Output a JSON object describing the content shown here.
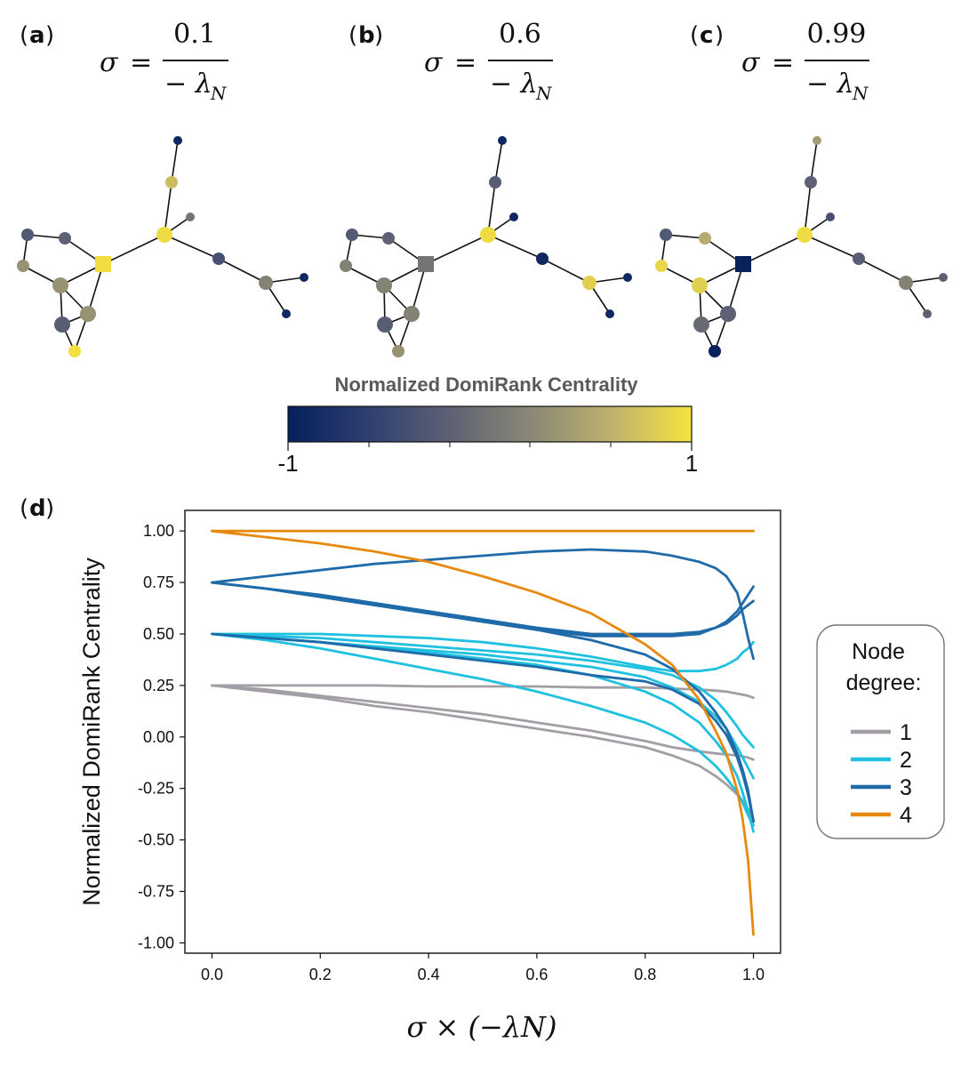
{
  "panels": [
    {
      "letter": "a",
      "sigma_symbol": "σ",
      "equals": "=",
      "numerator": "0.1",
      "denominator": "− λ",
      "subscript": "N"
    },
    {
      "letter": "b",
      "sigma_symbol": "σ",
      "equals": "=",
      "numerator": "0.6",
      "denominator": "− λ",
      "subscript": "N"
    },
    {
      "letter": "c",
      "sigma_symbol": "σ",
      "equals": "=",
      "numerator": "0.99",
      "denominator": "− λ",
      "subscript": "N"
    },
    {
      "letter": "d"
    }
  ],
  "colorbar": {
    "title": "Normalized DomiRank Centrality",
    "min_label": "-1",
    "max_label": "1",
    "colors": [
      "#06205c",
      "#2f3f70",
      "#5d6173",
      "#8a8775",
      "#bdb16e",
      "#f6e23e"
    ]
  },
  "networks": {
    "node_color_values": {
      "a": [
        -0.9,
        0.7,
        0.95,
        0.0,
        -0.4,
        0.15,
        -0.9,
        -0.9,
        -0.3,
        -0.2,
        0.3,
        0.3,
        0.3,
        -0.25,
        0.98
      ],
      "b": [
        -0.9,
        -0.25,
        0.95,
        -0.9,
        -0.9,
        0.85,
        -0.9,
        -0.9,
        -0.3,
        -0.2,
        0.15,
        0.15,
        0.15,
        -0.25,
        0.3
      ],
      "c": [
        0.4,
        -0.2,
        0.95,
        -0.4,
        -0.25,
        0.15,
        -0.2,
        -0.2,
        -0.3,
        0.55,
        0.9,
        0.85,
        -0.2,
        -0.1,
        -0.99
      ]
    }
  },
  "chart_data": {
    "type": "line",
    "title": "",
    "xlabel": "σ × (−λN)",
    "ylabel": "Normalized DomiRank Centrality",
    "xlim": [
      -0.05,
      1.05
    ],
    "ylim": [
      -1.05,
      1.1
    ],
    "xticks": [
      "0.0",
      "0.2",
      "0.4",
      "0.6",
      "0.8",
      "1.0"
    ],
    "yticks": [
      "1.00",
      "0.75",
      "0.50",
      "0.25",
      "0.00",
      "-0.25",
      "-0.50",
      "-0.75",
      "-1.00"
    ],
    "ytick_values": [
      1.0,
      0.75,
      0.5,
      0.25,
      0.0,
      -0.25,
      -0.5,
      -0.75,
      -1.0
    ],
    "xtick_values": [
      0.0,
      0.2,
      0.4,
      0.6,
      0.8,
      1.0
    ],
    "grid": false,
    "legend": {
      "title_line1": "Node",
      "title_line2": "degree:",
      "placement": "right"
    },
    "x": [
      0,
      0.1,
      0.2,
      0.3,
      0.4,
      0.5,
      0.6,
      0.7,
      0.8,
      0.85,
      0.9,
      0.93,
      0.95,
      0.97,
      0.98,
      0.99,
      1.0
    ],
    "series": [
      {
        "name": "1",
        "color": "#a39ea6",
        "values": [
          0.25,
          0.25,
          0.25,
          0.25,
          0.245,
          0.245,
          0.245,
          0.24,
          0.24,
          0.235,
          0.23,
          0.225,
          0.22,
          0.21,
          0.205,
          0.2,
          0.19
        ]
      },
      {
        "name": "1",
        "color": "#a39ea6",
        "values": [
          0.25,
          0.23,
          0.2,
          0.17,
          0.14,
          0.11,
          0.07,
          0.03,
          -0.02,
          -0.05,
          -0.07,
          -0.08,
          -0.085,
          -0.09,
          -0.095,
          -0.1,
          -0.11
        ]
      },
      {
        "name": "1",
        "color": "#a39ea6",
        "values": [
          0.25,
          0.22,
          0.19,
          0.15,
          0.12,
          0.08,
          0.04,
          0.0,
          -0.05,
          -0.09,
          -0.14,
          -0.19,
          -0.23,
          -0.28,
          -0.31,
          -0.35,
          -0.4
        ]
      },
      {
        "name": "2",
        "color": "#20c0e0",
        "values": [
          0.5,
          0.5,
          0.5,
          0.49,
          0.48,
          0.46,
          0.43,
          0.39,
          0.34,
          0.32,
          0.32,
          0.33,
          0.35,
          0.38,
          0.41,
          0.43,
          0.46
        ]
      },
      {
        "name": "2",
        "color": "#20c0e0",
        "values": [
          0.5,
          0.49,
          0.48,
          0.46,
          0.44,
          0.42,
          0.4,
          0.37,
          0.33,
          0.3,
          0.24,
          0.18,
          0.12,
          0.05,
          0.01,
          -0.02,
          -0.05
        ]
      },
      {
        "name": "2",
        "color": "#20c0e0",
        "values": [
          0.5,
          0.48,
          0.46,
          0.44,
          0.42,
          0.4,
          0.37,
          0.34,
          0.29,
          0.24,
          0.17,
          0.1,
          0.04,
          -0.05,
          -0.1,
          -0.15,
          -0.2
        ]
      },
      {
        "name": "2",
        "color": "#20c0e0",
        "values": [
          0.5,
          0.47,
          0.43,
          0.38,
          0.33,
          0.28,
          0.22,
          0.15,
          0.07,
          0.01,
          -0.07,
          -0.14,
          -0.2,
          -0.27,
          -0.32,
          -0.38,
          -0.43
        ]
      },
      {
        "name": "2",
        "color": "#20c0e0",
        "values": [
          0.5,
          0.48,
          0.46,
          0.43,
          0.41,
          0.38,
          0.35,
          0.3,
          0.22,
          0.16,
          0.07,
          -0.02,
          -0.09,
          -0.19,
          -0.27,
          -0.36,
          -0.46
        ]
      },
      {
        "name": "3",
        "color": "#1f6ba9",
        "values": [
          0.75,
          0.78,
          0.81,
          0.84,
          0.86,
          0.88,
          0.9,
          0.91,
          0.9,
          0.88,
          0.85,
          0.82,
          0.78,
          0.7,
          0.6,
          0.48,
          0.38
        ]
      },
      {
        "name": "3",
        "color": "#1f6ba9",
        "values": [
          0.75,
          0.72,
          0.68,
          0.64,
          0.6,
          0.56,
          0.52,
          0.49,
          0.49,
          0.49,
          0.5,
          0.53,
          0.56,
          0.61,
          0.65,
          0.69,
          0.73
        ]
      },
      {
        "name": "3",
        "color": "#1f6ba9",
        "values": [
          0.75,
          0.72,
          0.69,
          0.65,
          0.61,
          0.57,
          0.53,
          0.5,
          0.5,
          0.5,
          0.51,
          0.53,
          0.55,
          0.59,
          0.62,
          0.64,
          0.66
        ]
      },
      {
        "name": "3",
        "color": "#1f6ba9",
        "values": [
          0.75,
          0.72,
          0.68,
          0.64,
          0.6,
          0.56,
          0.52,
          0.47,
          0.4,
          0.33,
          0.22,
          0.12,
          0.04,
          -0.08,
          -0.16,
          -0.26,
          -0.41
        ]
      },
      {
        "name": "3",
        "color": "#1f6ba9",
        "values": [
          0.5,
          0.48,
          0.46,
          0.43,
          0.4,
          0.37,
          0.34,
          0.3,
          0.27,
          0.23,
          0.16,
          0.08,
          0.01,
          -0.1,
          -0.18,
          -0.28,
          -0.41
        ]
      },
      {
        "name": "4",
        "color": "#e8890f",
        "values": [
          1.0,
          1.0,
          1.0,
          1.0,
          1.0,
          1.0,
          1.0,
          1.0,
          1.0,
          1.0,
          1.0,
          1.0,
          1.0,
          1.0,
          1.0,
          1.0,
          1.0
        ]
      },
      {
        "name": "4",
        "color": "#e8890f",
        "values": [
          1.0,
          0.97,
          0.94,
          0.9,
          0.85,
          0.78,
          0.7,
          0.6,
          0.45,
          0.35,
          0.18,
          0.03,
          -0.08,
          -0.26,
          -0.4,
          -0.6,
          -0.96
        ]
      }
    ],
    "legend_entries": [
      {
        "name": "1",
        "color": "#a39ea6"
      },
      {
        "name": "2",
        "color": "#20c0e0"
      },
      {
        "name": "3",
        "color": "#1f6ba9"
      },
      {
        "name": "4",
        "color": "#e8890f"
      }
    ]
  }
}
